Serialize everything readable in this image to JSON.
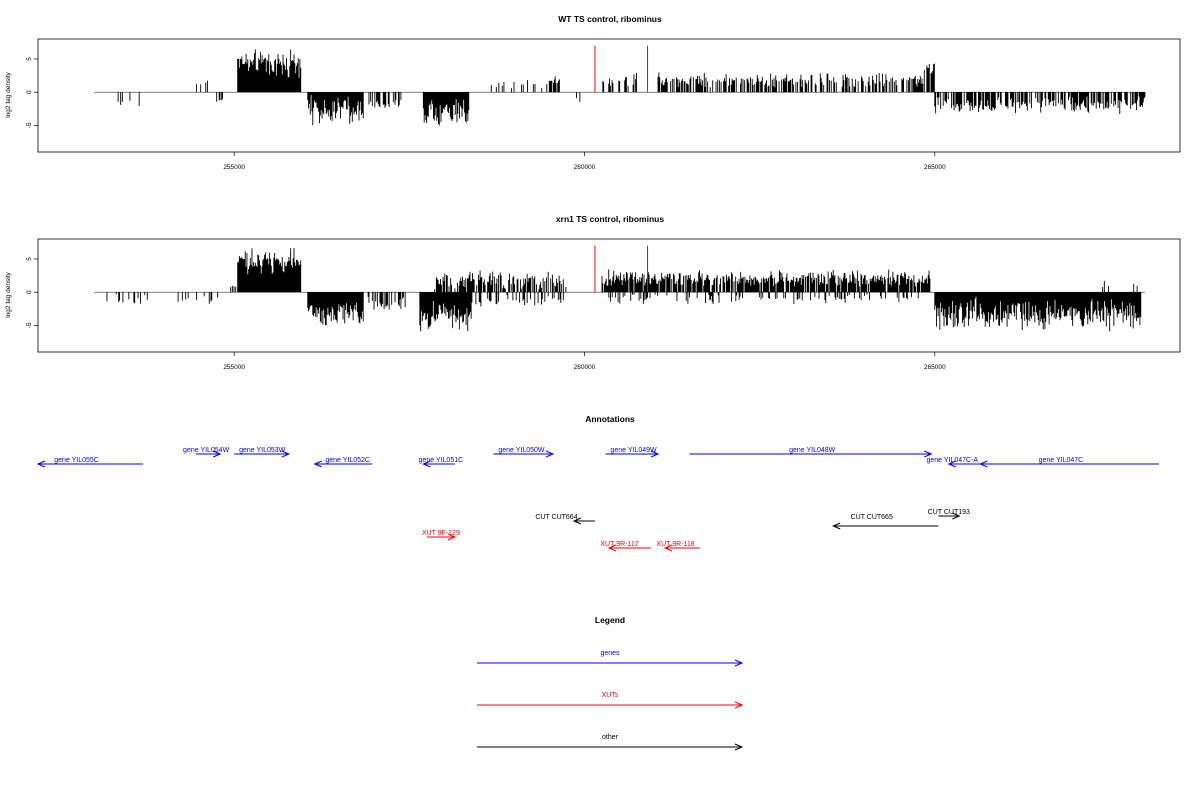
{
  "colors": {
    "gene": "#0000ff",
    "xut": "#ff0000",
    "other": "#000000",
    "highlight": "#ff0000"
  },
  "chart_data": [
    {
      "type": "bar",
      "title": "WT TS control, ribominus",
      "ylabel": "log2 tag density",
      "xlim": [
        252200,
        268500
      ],
      "ylim": [
        -9,
        8
      ],
      "x_ticks": [
        255000,
        260000,
        265000
      ],
      "x_tick_labels": [
        "255000",
        "260000",
        "265000"
      ],
      "y_ticks": [
        5,
        0,
        -5
      ],
      "y_tick_labels": [
        "5",
        "0",
        "-5"
      ],
      "baseline": {
        "from": 253000,
        "to": 268000
      },
      "highlight_x": [
        260150,
        260900
      ],
      "highlight_height": 7.0,
      "segments": [
        {
          "from": 253200,
          "to": 253750,
          "sign": -1,
          "mean": 1.3,
          "spread": 0.8,
          "density": 0.1
        },
        {
          "from": 254450,
          "to": 254700,
          "sign": 1,
          "mean": 1.5,
          "spread": 0.8,
          "density": 0.12
        },
        {
          "from": 254750,
          "to": 254850,
          "sign": -1,
          "mean": 1.3,
          "spread": 0.5,
          "density": 0.3
        },
        {
          "from": 255050,
          "to": 255950,
          "sign": 1,
          "mean": 4.3,
          "spread": 2.3,
          "density": 1.0
        },
        {
          "from": 256050,
          "to": 256850,
          "sign": -1,
          "mean": 2.8,
          "spread": 2.6,
          "density": 1.0
        },
        {
          "from": 256900,
          "to": 257400,
          "sign": -1,
          "mean": 1.8,
          "spread": 0.8,
          "density": 0.5
        },
        {
          "from": 257700,
          "to": 258350,
          "sign": -1,
          "mean": 3.2,
          "spread": 2.5,
          "density": 1.0
        },
        {
          "from": 258550,
          "to": 259400,
          "sign": 1,
          "mean": 1.3,
          "spread": 1.0,
          "density": 0.18
        },
        {
          "from": 259450,
          "to": 259650,
          "sign": 1,
          "mean": 1.8,
          "spread": 0.8,
          "density": 0.5
        },
        {
          "from": 259850,
          "to": 259950,
          "sign": -1,
          "mean": 1.1,
          "spread": 0.4,
          "density": 0.4
        },
        {
          "from": 260250,
          "to": 260750,
          "sign": 1,
          "mean": 1.8,
          "spread": 1.2,
          "density": 0.4
        },
        {
          "from": 261050,
          "to": 264850,
          "sign": 1,
          "mean": 1.9,
          "spread": 1.3,
          "density": 0.6
        },
        {
          "from": 264850,
          "to": 265000,
          "sign": 1,
          "mean": 3.5,
          "spread": 1.2,
          "density": 0.6
        },
        {
          "from": 265000,
          "to": 268000,
          "sign": -1,
          "mean": 1.9,
          "spread": 1.5,
          "density": 0.65
        }
      ]
    },
    {
      "type": "bar",
      "title": "xrn1 TS control, ribominus",
      "ylabel": "log2 tag density",
      "xlim": [
        252200,
        268500
      ],
      "ylim": [
        -9,
        8
      ],
      "x_ticks": [
        255000,
        260000,
        265000
      ],
      "x_tick_labels": [
        "255000",
        "260000",
        "265000"
      ],
      "y_ticks": [
        5,
        0,
        -5
      ],
      "y_tick_labels": [
        "5",
        "0",
        "-5"
      ],
      "baseline": {
        "from": 253000,
        "to": 268000
      },
      "highlight_x": [
        260150,
        260900
      ],
      "highlight_height": 7.0,
      "segments": [
        {
          "from": 253100,
          "to": 253900,
          "sign": -1,
          "mean": 1.2,
          "spread": 1.0,
          "density": 0.25
        },
        {
          "from": 254200,
          "to": 254850,
          "sign": -1,
          "mean": 1.3,
          "spread": 0.8,
          "density": 0.2
        },
        {
          "from": 254950,
          "to": 255050,
          "sign": 1,
          "mean": 0.8,
          "spread": 0.4,
          "density": 0.4
        },
        {
          "from": 255050,
          "to": 255950,
          "sign": 1,
          "mean": 4.6,
          "spread": 2.4,
          "density": 1.0
        },
        {
          "from": 256050,
          "to": 256850,
          "sign": -1,
          "mean": 3.2,
          "spread": 2.5,
          "density": 1.0
        },
        {
          "from": 256900,
          "to": 257450,
          "sign": -1,
          "mean": 1.8,
          "spread": 1.2,
          "density": 0.5
        },
        {
          "from": 257650,
          "to": 258400,
          "sign": -1,
          "mean": 3.5,
          "spread": 2.6,
          "density": 1.0
        },
        {
          "from": 257850,
          "to": 259750,
          "sign": 1,
          "mean": 1.8,
          "spread": 1.6,
          "density": 0.65
        },
        {
          "from": 258450,
          "to": 259700,
          "sign": -1,
          "mean": 1.3,
          "spread": 1.0,
          "density": 0.3
        },
        {
          "from": 260250,
          "to": 264950,
          "sign": 1,
          "mean": 2.1,
          "spread": 1.4,
          "density": 0.85
        },
        {
          "from": 260300,
          "to": 264800,
          "sign": -1,
          "mean": 1.0,
          "spread": 0.9,
          "density": 0.25
        },
        {
          "from": 265000,
          "to": 267950,
          "sign": -1,
          "mean": 3.3,
          "spread": 2.8,
          "density": 1.0
        },
        {
          "from": 267000,
          "to": 267900,
          "sign": 1,
          "mean": 1.0,
          "spread": 0.8,
          "density": 0.12
        }
      ]
    }
  ],
  "annotations": {
    "title": "Annotations",
    "xlim": [
      252200,
      268500
    ],
    "features": [
      {
        "label": "gene YIL055C",
        "kind": "gene",
        "from": 252200,
        "to": 253700,
        "strand": "-",
        "row": 2,
        "label_at": 252750,
        "label_row": 2
      },
      {
        "label": "gene YIL054W",
        "kind": "gene",
        "from": 254450,
        "to": 254800,
        "strand": "+",
        "row": 1,
        "label_at": 254600,
        "label_row": 1
      },
      {
        "label": "gene YIL053W",
        "kind": "gene",
        "from": 255000,
        "to": 255780,
        "strand": "+",
        "row": 1,
        "label_at": 255400,
        "label_row": 1
      },
      {
        "label": "gene YIL052C",
        "kind": "gene",
        "from": 256150,
        "to": 256970,
        "strand": "-",
        "row": 2,
        "label_at": 256620,
        "label_row": 2
      },
      {
        "label": "gene YIL051C",
        "kind": "gene",
        "from": 257700,
        "to": 258150,
        "strand": "-",
        "row": 2,
        "label_at": 257950,
        "label_row": 2
      },
      {
        "label": "gene YIL050W",
        "kind": "gene",
        "from": 258700,
        "to": 259550,
        "strand": "+",
        "row": 1,
        "label_at": 259100,
        "label_row": 1
      },
      {
        "label": "gene YIL049W",
        "kind": "gene",
        "from": 260300,
        "to": 261050,
        "strand": "+",
        "row": 1,
        "label_at": 260700,
        "label_row": 1
      },
      {
        "label": "gene YIL048W",
        "kind": "gene",
        "from": 261500,
        "to": 264950,
        "strand": "+",
        "row": 1,
        "label_at": 263250,
        "label_row": 1
      },
      {
        "label": "gene YIL047C-A",
        "kind": "gene",
        "from": 265200,
        "to": 265650,
        "strand": "-",
        "row": 2,
        "label_at": 265250,
        "label_row": 2
      },
      {
        "label": "gene YIL047C",
        "kind": "gene",
        "from": 265650,
        "to": 268200,
        "strand": "-",
        "row": 2,
        "label_at": 266800,
        "label_row": 2
      },
      {
        "label": "CUT CUT193",
        "kind": "other",
        "from": 265050,
        "to": 265350,
        "strand": "+",
        "row": 3,
        "label_at": 265200,
        "label_row": 3
      },
      {
        "label": "CUT CUT664",
        "kind": "other",
        "from": 259850,
        "to": 260150,
        "strand": "-",
        "row": 4,
        "label_at": 259600,
        "label_row": 4
      },
      {
        "label": "CUT CUT665",
        "kind": "other",
        "from": 263550,
        "to": 265050,
        "strand": "-",
        "row": 5,
        "label_at": 264100,
        "label_row": 4
      },
      {
        "label": "XUT 9F-129",
        "kind": "xut",
        "from": 257750,
        "to": 258150,
        "strand": "+",
        "row": 6,
        "label_at": 257950,
        "label_row": 6
      },
      {
        "label": "XUT 9R-117",
        "kind": "xut",
        "from": 260350,
        "to": 260950,
        "strand": "-",
        "row": 7,
        "label_at": 260500,
        "label_row": 7
      },
      {
        "label": "XUT 9R-118",
        "kind": "xut",
        "from": 261150,
        "to": 261650,
        "strand": "-",
        "row": 7,
        "label_at": 261300,
        "label_row": 7
      }
    ]
  },
  "legend": {
    "title": "Legend",
    "items": [
      {
        "label": "genes",
        "kind": "gene"
      },
      {
        "label": "XUTs",
        "kind": "xut"
      },
      {
        "label": "other",
        "kind": "other"
      }
    ]
  }
}
